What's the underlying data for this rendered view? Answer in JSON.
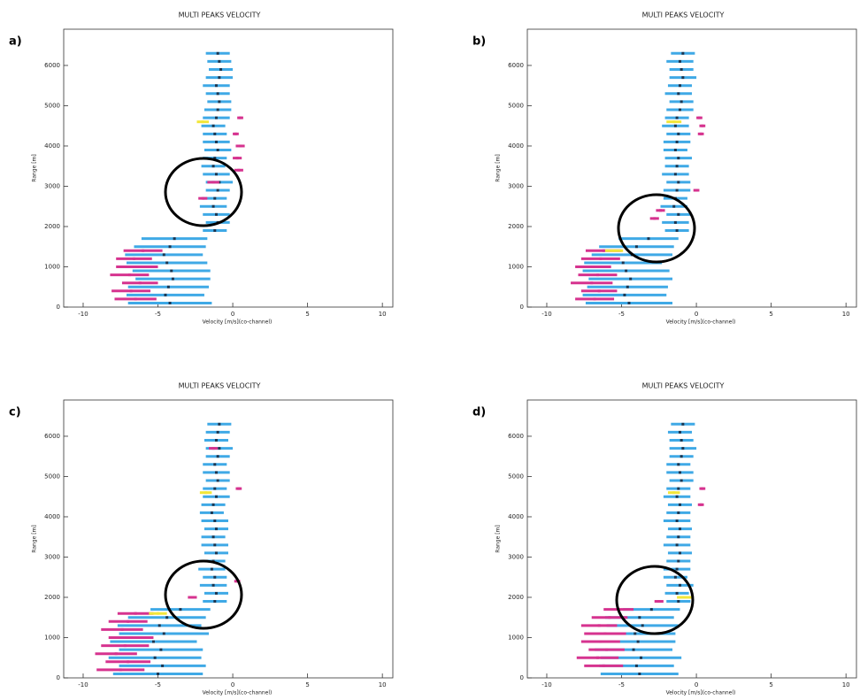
{
  "chart_data": [
    {
      "type": "scatter",
      "title": "MULTI PEAKS VELOCITY",
      "label": "a)",
      "xlabel": "Velocity [m/s](co-channel)",
      "ylabel": "Range [m]",
      "xlim": [
        -11.3,
        10.7
      ],
      "ylim": [
        0,
        6900
      ],
      "xticks": [
        -10,
        -5,
        0,
        5,
        10
      ],
      "yticks": [
        0,
        1000,
        2000,
        3000,
        4000,
        5000,
        6000
      ],
      "series": [
        {
          "color": "#3fa9e6",
          "y": [
            100,
            300,
            500,
            700,
            900,
            1100,
            1300,
            1500,
            1700,
            1900,
            2100,
            2300,
            2500,
            2700,
            2900,
            3100,
            3300,
            3500,
            3700,
            3900,
            4100,
            4300,
            4500,
            4700,
            4900,
            5100,
            5300,
            5500,
            5700,
            5900,
            6100,
            6300
          ],
          "x": [
            -4.2,
            -4.5,
            -4.3,
            -4.0,
            -4.1,
            -4.4,
            -4.6,
            -4.2,
            -3.9,
            -1.2,
            -1.0,
            -1.1,
            -1.3,
            -1.2,
            -1.0,
            -0.9,
            -1.1,
            -1.3,
            -1.2,
            -1.0,
            -1.1,
            -1.2,
            -1.3,
            -1.1,
            -1.0,
            -0.9,
            -1.0,
            -1.1,
            -0.9,
            -0.8,
            -0.9,
            -1.0
          ],
          "xerr": [
            2.8,
            2.6,
            2.7,
            2.5,
            2.6,
            2.7,
            2.6,
            2.4,
            2.2,
            0.8,
            0.8,
            0.9,
            0.9,
            0.8,
            0.8,
            0.9,
            0.9,
            0.8,
            0.8,
            0.9,
            0.9,
            0.8,
            0.8,
            0.9,
            0.9,
            0.8,
            0.8,
            0.9,
            0.9,
            0.8,
            0.8,
            0.8
          ]
        },
        {
          "color": "#d6338f",
          "y": [
            200,
            400,
            600,
            800,
            1000,
            1200,
            1400,
            2700,
            3100,
            3400,
            3700,
            4000,
            4300,
            4700
          ],
          "x": [
            -6.5,
            -6.8,
            -6.2,
            -6.9,
            -6.4,
            -6.6,
            -6.0,
            -2.0,
            -1.3,
            0.4,
            0.3,
            0.5,
            0.2,
            0.5
          ],
          "xerr": [
            1.4,
            1.3,
            1.2,
            1.3,
            1.4,
            1.2,
            1.3,
            0.3,
            0.4,
            0.3,
            0.3,
            0.3,
            0.2,
            0.2
          ]
        },
        {
          "color": "#f2e63a",
          "y": [
            4600
          ],
          "x": [
            -2.0
          ],
          "xerr": [
            0.4
          ]
        }
      ]
    },
    {
      "type": "scatter",
      "title": "MULTI PEAKS VELOCITY",
      "label": "b)",
      "xlabel": "Velocity [m/s](co-channel)",
      "ylabel": "Range [m]",
      "xlim": [
        -11.3,
        10.7
      ],
      "ylim": [
        0,
        6900
      ],
      "xticks": [
        -10,
        -5,
        0,
        5,
        10
      ],
      "yticks": [
        0,
        1000,
        2000,
        3000,
        4000,
        5000,
        6000
      ],
      "series": [
        {
          "color": "#3fa9e6",
          "y": [
            100,
            300,
            500,
            700,
            900,
            1100,
            1300,
            1500,
            1700,
            1900,
            2100,
            2300,
            2500,
            2700,
            2900,
            3100,
            3300,
            3500,
            3700,
            3900,
            4100,
            4300,
            4500,
            4700,
            4900,
            5100,
            5300,
            5500,
            5700,
            5900,
            6100,
            6300
          ],
          "x": [
            -4.5,
            -4.8,
            -4.6,
            -4.4,
            -4.7,
            -4.9,
            -4.3,
            -4.0,
            -3.2,
            -1.3,
            -1.4,
            -1.2,
            -1.5,
            -1.4,
            -1.3,
            -1.2,
            -1.4,
            -1.3,
            -1.2,
            -1.4,
            -1.3,
            -1.2,
            -1.4,
            -1.3,
            -1.1,
            -1.0,
            -1.2,
            -1.1,
            -0.9,
            -1.0,
            -1.1,
            -0.9
          ],
          "xerr": [
            2.9,
            2.8,
            2.7,
            2.8,
            2.9,
            2.6,
            2.7,
            2.5,
            2.0,
            0.8,
            0.9,
            0.8,
            0.9,
            0.8,
            0.9,
            0.8,
            0.9,
            0.8,
            0.9,
            0.8,
            0.9,
            0.8,
            0.9,
            0.8,
            0.9,
            0.8,
            0.9,
            0.8,
            0.9,
            0.8,
            0.9,
            0.8
          ]
        },
        {
          "color": "#d6338f",
          "y": [
            200,
            400,
            600,
            800,
            1000,
            1200,
            1400,
            2200,
            2400,
            2900,
            4300,
            4500,
            4700
          ],
          "x": [
            -6.8,
            -6.5,
            -7.0,
            -6.6,
            -6.9,
            -6.4,
            -6.2,
            -2.8,
            -2.4,
            0.0,
            0.3,
            0.4,
            0.2
          ],
          "xerr": [
            1.3,
            1.2,
            1.4,
            1.3,
            1.2,
            1.3,
            1.2,
            0.3,
            0.3,
            0.2,
            0.2,
            0.2,
            0.2
          ]
        },
        {
          "color": "#f2e63a",
          "y": [
            1400,
            4600
          ],
          "x": [
            -5.5,
            -1.5
          ],
          "xerr": [
            0.6,
            0.5
          ]
        }
      ]
    },
    {
      "type": "scatter",
      "title": "MULTI PEAKS VELOCITY",
      "label": "c)",
      "xlabel": "Velocity [m/s](co-channel)",
      "ylabel": "Range [m]",
      "xlim": [
        -11.3,
        10.7
      ],
      "ylim": [
        0,
        6900
      ],
      "xticks": [
        -10,
        -5,
        0,
        5,
        10
      ],
      "yticks": [
        0,
        1000,
        2000,
        3000,
        4000,
        5000,
        6000
      ],
      "series": [
        {
          "color": "#3fa9e6",
          "y": [
            100,
            300,
            500,
            700,
            900,
            1100,
            1300,
            1500,
            1700,
            1900,
            2100,
            2300,
            2500,
            2700,
            2900,
            3100,
            3300,
            3500,
            3700,
            3900,
            4100,
            4300,
            4500,
            4700,
            4900,
            5100,
            5300,
            5500,
            5700,
            5900,
            6100,
            6300
          ],
          "x": [
            -5.0,
            -4.7,
            -5.2,
            -4.8,
            -5.3,
            -4.6,
            -4.9,
            -4.4,
            -3.5,
            -1.2,
            -1.1,
            -1.3,
            -1.2,
            -1.4,
            -1.3,
            -1.1,
            -1.2,
            -1.3,
            -1.1,
            -1.2,
            -1.4,
            -1.3,
            -1.1,
            -1.2,
            -1.0,
            -1.1,
            -1.2,
            -1.0,
            -0.9,
            -1.1,
            -1.0,
            -0.9
          ],
          "xerr": [
            3.0,
            2.9,
            3.1,
            2.8,
            2.9,
            3.0,
            2.8,
            2.6,
            2.0,
            0.8,
            0.8,
            0.9,
            0.8,
            0.9,
            0.8,
            0.8,
            0.9,
            0.8,
            0.8,
            0.9,
            0.8,
            0.8,
            0.9,
            0.8,
            0.8,
            0.9,
            0.8,
            0.8,
            0.9,
            0.8,
            0.8,
            0.8
          ]
        },
        {
          "color": "#d6338f",
          "y": [
            200,
            400,
            600,
            800,
            1000,
            1200,
            1400,
            1600,
            2000,
            2400,
            4700,
            5700
          ],
          "x": [
            -7.5,
            -7.0,
            -7.8,
            -7.2,
            -6.8,
            -7.4,
            -7.0,
            -6.5,
            -2.7,
            0.3,
            0.4,
            -1.3
          ],
          "xerr": [
            1.6,
            1.5,
            1.4,
            1.6,
            1.5,
            1.4,
            1.3,
            1.2,
            0.3,
            0.2,
            0.2,
            0.3
          ]
        },
        {
          "color": "#f2e63a",
          "y": [
            1600,
            4600
          ],
          "x": [
            -5.0,
            -1.8
          ],
          "xerr": [
            0.6,
            0.4
          ]
        }
      ]
    },
    {
      "type": "scatter",
      "title": "MULTI PEAKS VELOCITY",
      "label": "d)",
      "xlabel": "Velocity [m/s](co-channel)",
      "ylabel": "Range [m]",
      "xlim": [
        -11.3,
        10.7
      ],
      "ylim": [
        0,
        6900
      ],
      "xticks": [
        -10,
        -5,
        0,
        5,
        10
      ],
      "yticks": [
        0,
        1000,
        2000,
        3000,
        4000,
        5000,
        6000
      ],
      "series": [
        {
          "color": "#3fa9e6",
          "y": [
            100,
            300,
            500,
            700,
            900,
            1100,
            1300,
            1500,
            1700,
            1900,
            2100,
            2300,
            2500,
            2700,
            2900,
            3100,
            3300,
            3500,
            3700,
            3900,
            4100,
            4300,
            4500,
            4700,
            4900,
            5100,
            5300,
            5500,
            5700,
            5900,
            6100,
            6300
          ],
          "x": [
            -3.8,
            -4.0,
            -3.7,
            -4.2,
            -3.9,
            -4.1,
            -3.6,
            -3.8,
            -3.0,
            -1.2,
            -1.3,
            -1.1,
            -1.4,
            -1.3,
            -1.2,
            -1.1,
            -1.3,
            -1.2,
            -1.1,
            -1.3,
            -1.2,
            -1.1,
            -1.3,
            -1.2,
            -1.0,
            -1.1,
            -1.2,
            -1.0,
            -0.9,
            -1.0,
            -1.1,
            -0.9
          ],
          "xerr": [
            2.6,
            2.5,
            2.7,
            2.6,
            2.5,
            2.7,
            2.4,
            2.3,
            1.9,
            0.8,
            0.8,
            0.9,
            0.8,
            0.9,
            0.8,
            0.8,
            0.9,
            0.8,
            0.8,
            0.9,
            0.8,
            0.8,
            0.9,
            0.8,
            0.8,
            0.9,
            0.8,
            0.8,
            0.9,
            0.8,
            0.8,
            0.8
          ]
        },
        {
          "color": "#d6338f",
          "y": [
            300,
            500,
            700,
            900,
            1100,
            1300,
            1500,
            1700,
            1900,
            4300,
            4700
          ],
          "x": [
            -6.2,
            -6.6,
            -6.0,
            -6.4,
            -6.1,
            -6.5,
            -5.8,
            -5.2,
            -2.5,
            0.3,
            0.4
          ],
          "xerr": [
            1.3,
            1.4,
            1.2,
            1.3,
            1.4,
            1.2,
            1.2,
            1.0,
            0.3,
            0.2,
            0.2
          ]
        },
        {
          "color": "#f2e63a",
          "y": [
            2000,
            4600
          ],
          "x": [
            -0.8,
            -1.5
          ],
          "xerr": [
            0.5,
            0.4
          ]
        }
      ]
    }
  ]
}
